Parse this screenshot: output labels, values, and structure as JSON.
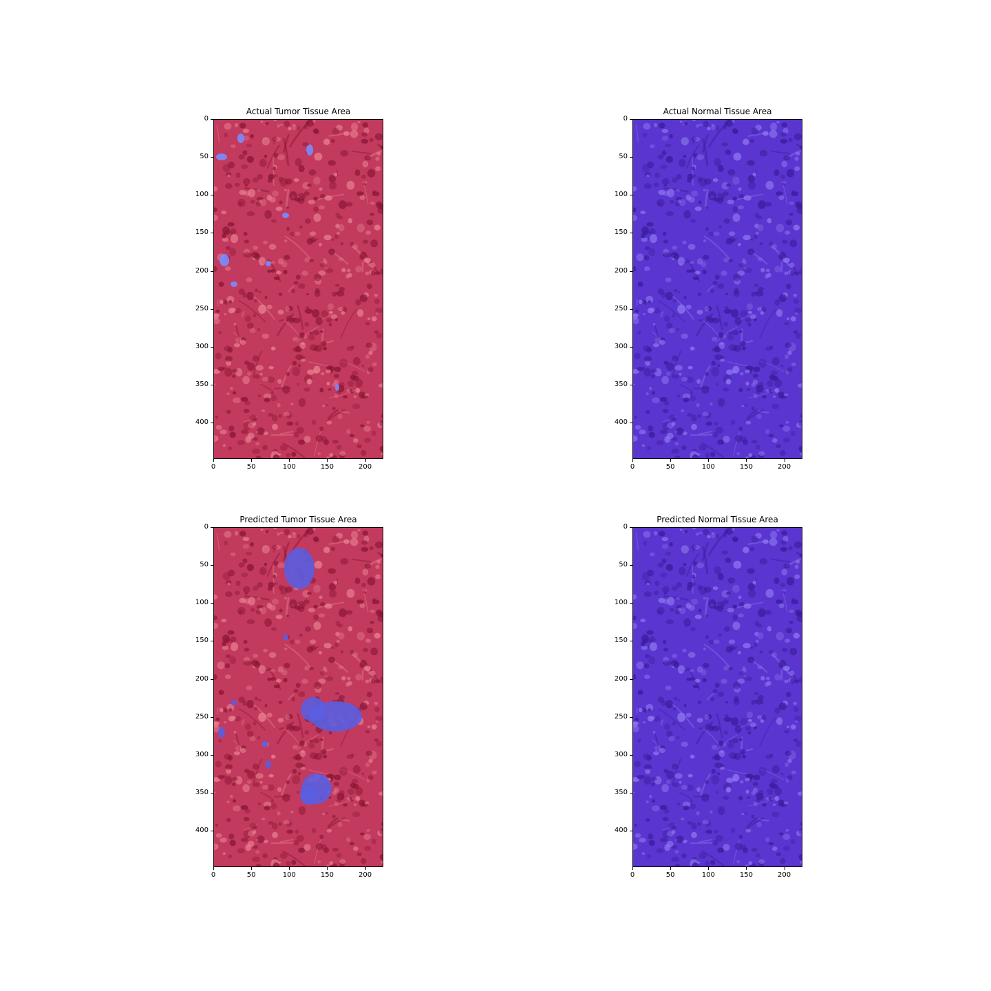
{
  "figure": {
    "panels": [
      {
        "id": "actual-tumor",
        "title": "Actual Tumor Tissue Area",
        "tint": "#c23a5e",
        "highlight": "#7a8cff"
      },
      {
        "id": "actual-normal",
        "title": "Actual Normal Tissue Area",
        "tint": "#5a35cf",
        "highlight": "#9a8cff"
      },
      {
        "id": "predicted-tumor",
        "title": "Predicted Tumor Tissue Area",
        "tint": "#c23a5e",
        "highlight": "#5a5ee0"
      },
      {
        "id": "predicted-normal",
        "title": "Predicted Normal Tissue Area",
        "tint": "#5a35cf",
        "highlight": "#9a8cff"
      }
    ],
    "axes": {
      "y_ticks": [
        "0",
        "50",
        "100",
        "150",
        "200",
        "250",
        "300",
        "350",
        "400"
      ],
      "x_ticks": [
        "0",
        "50",
        "100",
        "150",
        "200"
      ],
      "x_range": [
        0,
        224
      ],
      "y_range": [
        0,
        448
      ]
    }
  }
}
